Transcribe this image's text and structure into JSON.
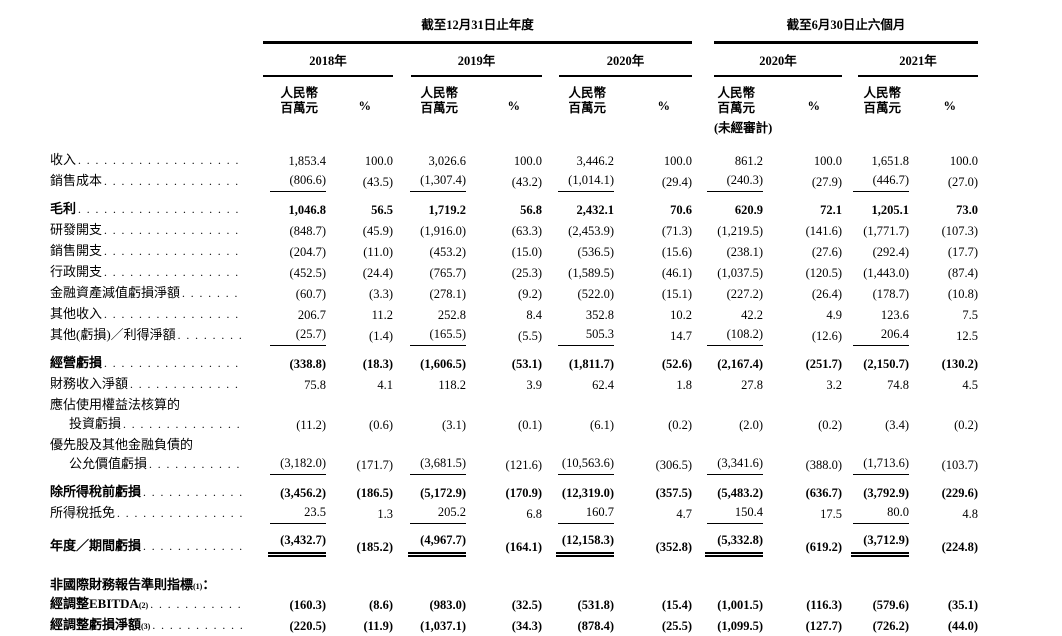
{
  "document": {
    "period_groups": [
      {
        "title": "截至12月31日止年度",
        "years": [
          "2018年",
          "2019年",
          "2020年"
        ]
      },
      {
        "title": "截至6月30日止六個月",
        "years": [
          "2020年",
          "2021年"
        ]
      }
    ],
    "column_unit_line1": "人民幣",
    "column_unit_line2": "百萬元",
    "column_pct": "%",
    "unaudited": "(未經審計)",
    "rows": [
      {
        "label": "收入",
        "dots": true,
        "values": [
          "1,853.4",
          "100.0",
          "3,026.6",
          "100.0",
          "3,446.2",
          "100.0",
          "861.2",
          "100.0",
          "1,651.8",
          "100.0"
        ]
      },
      {
        "label": "銷售成本",
        "dots": true,
        "underline": "single",
        "values": [
          "(806.6)",
          "(43.5)",
          "(1,307.4)",
          "(43.2)",
          "(1,014.1)",
          "(29.4)",
          "(240.3)",
          "(27.9)",
          "(446.7)",
          "(27.0)"
        ]
      },
      {
        "label": "毛利",
        "dots": true,
        "bold": true,
        "space": true,
        "values": [
          "1,046.8",
          "56.5",
          "1,719.2",
          "56.8",
          "2,432.1",
          "70.6",
          "620.9",
          "72.1",
          "1,205.1",
          "73.0"
        ]
      },
      {
        "label": "研發開支",
        "dots": true,
        "values": [
          "(848.7)",
          "(45.9)",
          "(1,916.0)",
          "(63.3)",
          "(2,453.9)",
          "(71.3)",
          "(1,219.5)",
          "(141.6)",
          "(1,771.7)",
          "(107.3)"
        ]
      },
      {
        "label": "銷售開支",
        "dots": true,
        "values": [
          "(204.7)",
          "(11.0)",
          "(453.2)",
          "(15.0)",
          "(536.5)",
          "(15.6)",
          "(238.1)",
          "(27.6)",
          "(292.4)",
          "(17.7)"
        ]
      },
      {
        "label": "行政開支",
        "dots": true,
        "values": [
          "(452.5)",
          "(24.4)",
          "(765.7)",
          "(25.3)",
          "(1,589.5)",
          "(46.1)",
          "(1,037.5)",
          "(120.5)",
          "(1,443.0)",
          "(87.4)"
        ]
      },
      {
        "label": "金融資產減值虧損淨額",
        "dots": true,
        "values": [
          "(60.7)",
          "(3.3)",
          "(278.1)",
          "(9.2)",
          "(522.0)",
          "(15.1)",
          "(227.2)",
          "(26.4)",
          "(178.7)",
          "(10.8)"
        ]
      },
      {
        "label": "其他收入",
        "dots": true,
        "values": [
          "206.7",
          "11.2",
          "252.8",
          "8.4",
          "352.8",
          "10.2",
          "42.2",
          "4.9",
          "123.6",
          "7.5"
        ]
      },
      {
        "label": "其他(虧損)／利得淨額",
        "dots": true,
        "underline": "single",
        "values": [
          "(25.7)",
          "(1.4)",
          "(165.5)",
          "(5.5)",
          "505.3",
          "14.7",
          "(108.2)",
          "(12.6)",
          "206.4",
          "12.5"
        ]
      },
      {
        "label": "經營虧損",
        "dots": true,
        "bold": true,
        "space": true,
        "values": [
          "(338.8)",
          "(18.3)",
          "(1,606.5)",
          "(53.1)",
          "(1,811.7)",
          "(52.6)",
          "(2,167.4)",
          "(251.7)",
          "(2,150.7)",
          "(130.2)"
        ]
      },
      {
        "label": "財務收入淨額",
        "dots": true,
        "values": [
          "75.8",
          "4.1",
          "118.2",
          "3.9",
          "62.4",
          "1.8",
          "27.8",
          "3.2",
          "74.8",
          "4.5"
        ]
      },
      {
        "label": "應佔使用權益法核算的"
      },
      {
        "label": "投資虧損",
        "dots": true,
        "indent": true,
        "values": [
          "(11.2)",
          "(0.6)",
          "(3.1)",
          "(0.1)",
          "(6.1)",
          "(0.2)",
          "(2.0)",
          "(0.2)",
          "(3.4)",
          "(0.2)"
        ]
      },
      {
        "label": "優先股及其他金融負債的"
      },
      {
        "label": "公允價值虧損",
        "dots": true,
        "indent": true,
        "underline": "single",
        "values": [
          "(3,182.0)",
          "(171.7)",
          "(3,681.5)",
          "(121.6)",
          "(10,563.6)",
          "(306.5)",
          "(3,341.6)",
          "(388.0)",
          "(1,713.6)",
          "(103.7)"
        ]
      },
      {
        "label": "除所得稅前虧損",
        "dots": true,
        "bold": true,
        "space": true,
        "values": [
          "(3,456.2)",
          "(186.5)",
          "(5,172.9)",
          "(170.9)",
          "(12,319.0)",
          "(357.5)",
          "(5,483.2)",
          "(636.7)",
          "(3,792.9)",
          "(229.6)"
        ]
      },
      {
        "label": "所得稅抵免",
        "dots": true,
        "underline": "single",
        "values": [
          "23.5",
          "1.3",
          "205.2",
          "6.8",
          "160.7",
          "4.7",
          "150.4",
          "17.5",
          "80.0",
          "4.8"
        ]
      },
      {
        "label": "年度／期間虧損",
        "dots": true,
        "bold": true,
        "space": true,
        "underline": "double",
        "values": [
          "(3,432.7)",
          "(185.2)",
          "(4,967.7)",
          "(164.1)",
          "(12,158.3)",
          "(352.8)",
          "(5,332.8)",
          "(619.2)",
          "(3,712.9)",
          "(224.8)"
        ]
      },
      {
        "label": "非國際財務報告準則指標",
        "sup": "(1)",
        "suffix": "：",
        "bold": true,
        "space_lg": true
      },
      {
        "label": "經調整EBITDA",
        "sup": "(2)",
        "dots": true,
        "bold": true,
        "values": [
          "(160.3)",
          "(8.6)",
          "(983.0)",
          "(32.5)",
          "(531.8)",
          "(15.4)",
          "(1,001.5)",
          "(116.3)",
          "(579.6)",
          "(35.1)"
        ]
      },
      {
        "label": "經調整虧損淨額",
        "sup": "(3)",
        "dots": true,
        "bold": true,
        "values": [
          "(220.5)",
          "(11.9)",
          "(1,037.1)",
          "(34.3)",
          "(878.4)",
          "(25.5)",
          "(1,099.5)",
          "(127.7)",
          "(726.2)",
          "(44.0)"
        ]
      }
    ]
  }
}
